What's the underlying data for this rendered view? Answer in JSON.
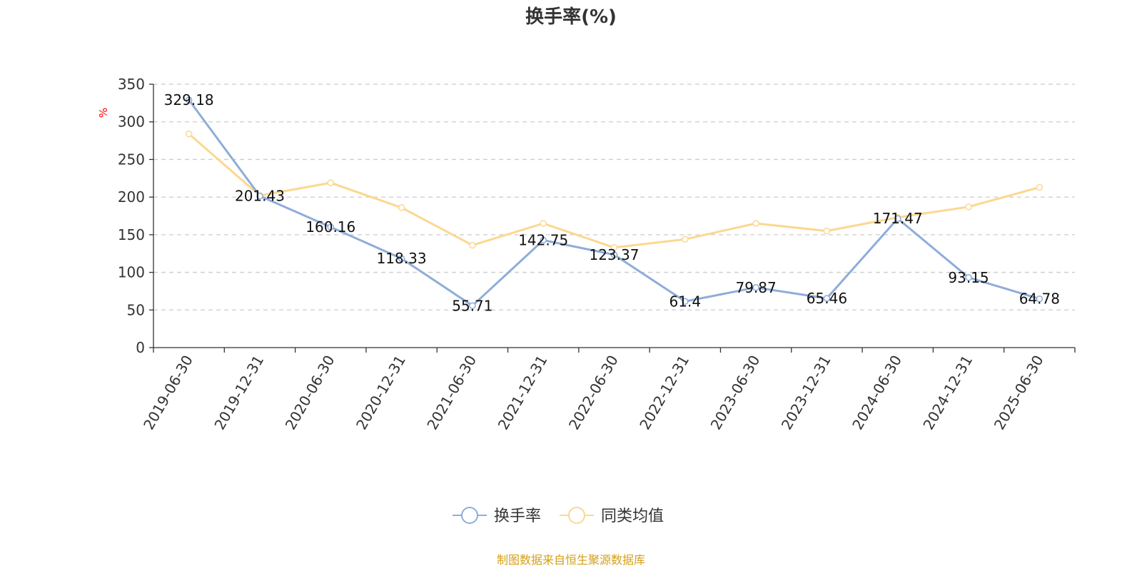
{
  "chart_data": {
    "type": "line",
    "title": "换手率(%)",
    "ylabel": "%",
    "xlabel": "",
    "categories": [
      "2019-06-30",
      "2019-12-31",
      "2020-06-30",
      "2020-12-31",
      "2021-06-30",
      "2021-12-31",
      "2022-06-30",
      "2022-12-31",
      "2023-06-30",
      "2023-12-31",
      "2024-06-30",
      "2024-12-31",
      "2025-06-30"
    ],
    "series": [
      {
        "name": "换手率",
        "color": "#8eadd9",
        "values": [
          329.18,
          201.43,
          160.16,
          118.33,
          55.71,
          142.75,
          123.37,
          61.4,
          79.87,
          65.46,
          171.47,
          93.15,
          64.78
        ],
        "labels": [
          "329.18",
          "201.43",
          "160.16",
          "118.33",
          "55.71",
          "142.75",
          "123.37",
          "61.4",
          "79.87",
          "65.46",
          "171.47",
          "93.15",
          "64.78"
        ]
      },
      {
        "name": "同类均值",
        "color": "#fbd890",
        "values": [
          284,
          202,
          219,
          186,
          136,
          165,
          133,
          144,
          165,
          155,
          173,
          187,
          213
        ]
      }
    ],
    "ylim": [
      0,
      350
    ],
    "yticks": [
      0,
      50,
      100,
      150,
      200,
      250,
      300,
      350
    ],
    "grid": true,
    "legend_position": "bottom-center"
  },
  "footer": {
    "source": "制图数据来自恒生聚源数据库",
    "source_color": "#d4a017"
  },
  "colors": {
    "axis": "#333333",
    "grid": "#cccccc",
    "unit": "#ff0000"
  }
}
